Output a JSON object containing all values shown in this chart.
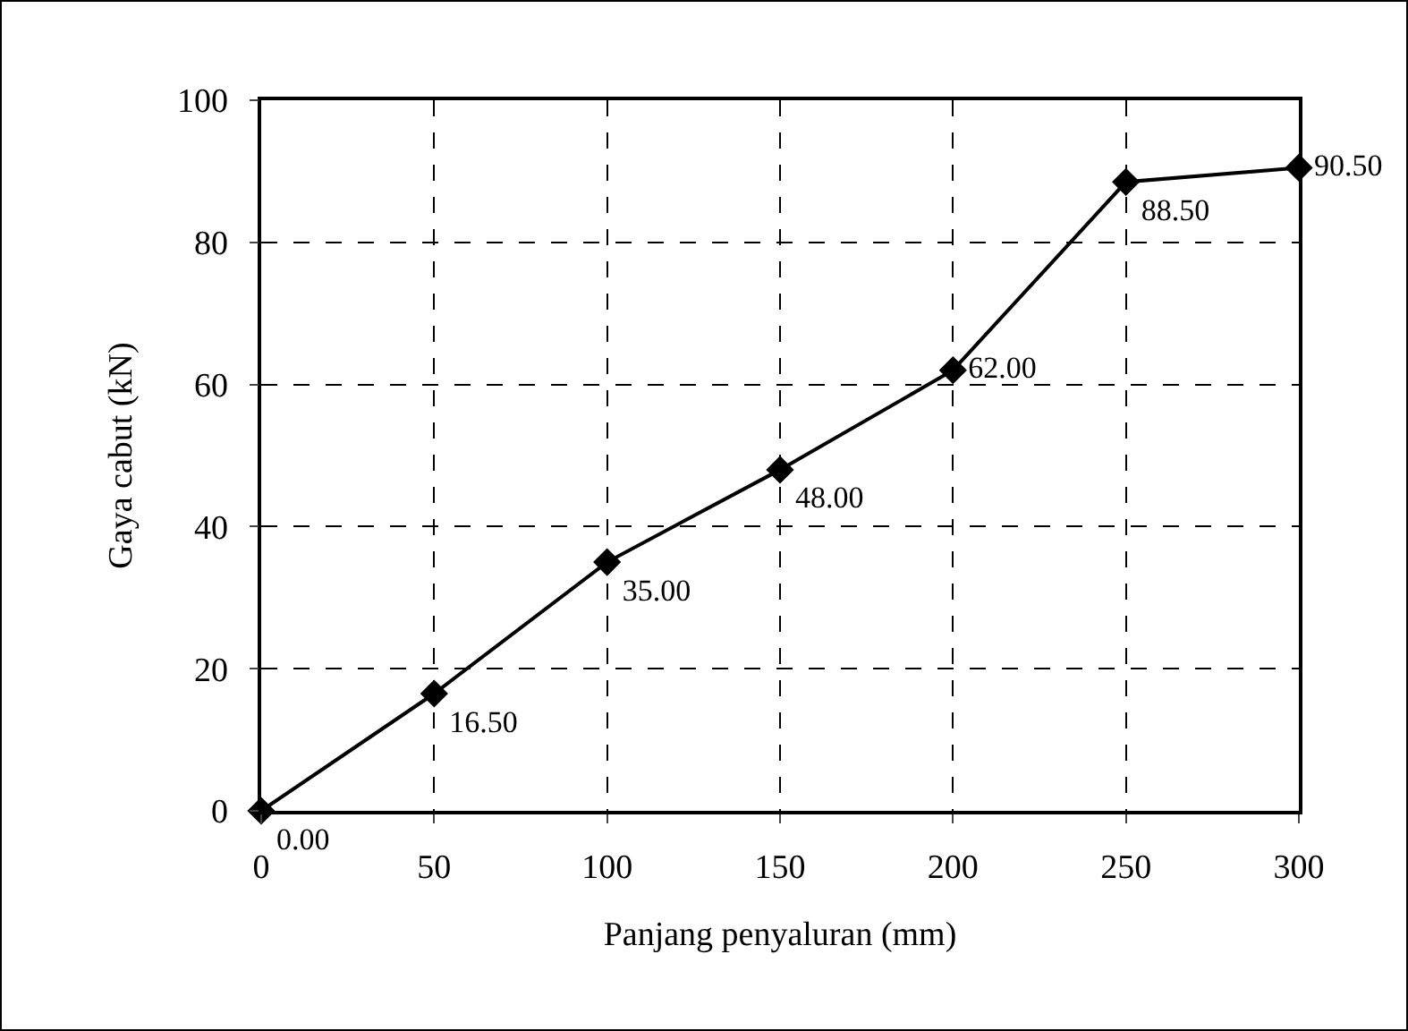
{
  "chart_data": {
    "type": "line",
    "xlabel": "Panjang penyaluran (mm)",
    "ylabel": "Gaya cabut (kN)",
    "x": [
      0,
      50,
      100,
      150,
      200,
      250,
      300
    ],
    "series": [
      {
        "color": "#000000",
        "values": [
          0,
          16.5,
          35,
          48,
          62,
          88.5,
          90.5
        ],
        "value_labels": [
          "0.00",
          "16.50",
          "35.00",
          "48.00",
          "62.00",
          "88.50",
          "90.50"
        ]
      }
    ],
    "xlim": [
      0,
      300
    ],
    "xticks": [
      0,
      50,
      100,
      150,
      200,
      250,
      300
    ],
    "ylim": [
      0,
      100
    ],
    "yticks": [
      0,
      20,
      40,
      60,
      80,
      100
    ],
    "grid": true,
    "marker": "diamond",
    "line_style": "solid"
  }
}
